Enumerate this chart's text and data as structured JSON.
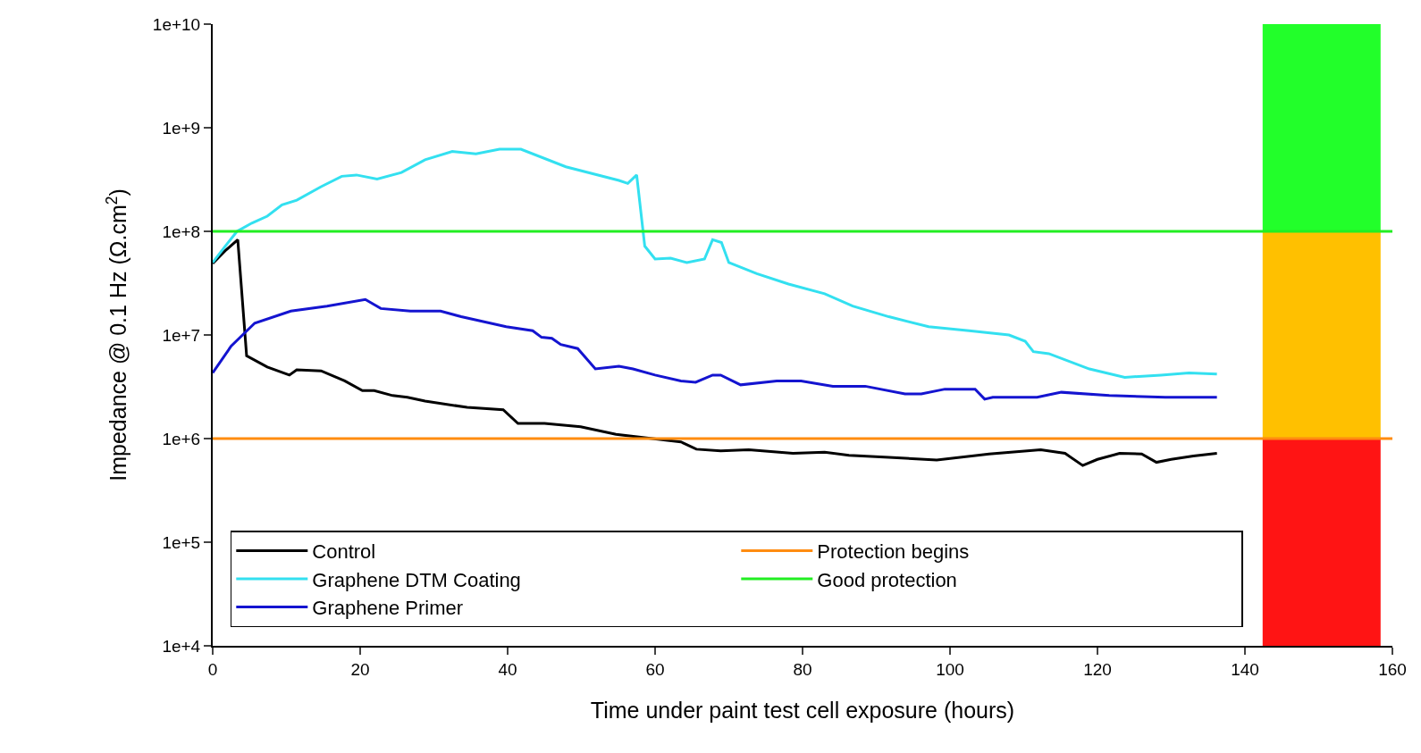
{
  "chart_data": {
    "type": "line",
    "xlabel": "Time under paint test cell exposure (hours)",
    "ylabel": "Impedance @ 0.1 Hz (Ω.cm$^{2}$)",
    "xlim": [
      0,
      160
    ],
    "xticks": [
      0,
      20,
      40,
      60,
      80,
      100,
      120,
      140,
      160
    ],
    "ylim": [
      10000.0,
      10000000000.0
    ],
    "yticks": [
      {
        "value": 10000.0,
        "label": "1e+4"
      },
      {
        "value": 100000.0,
        "label": "1e+5"
      },
      {
        "value": 1000000.0,
        "label": "1e+6"
      },
      {
        "value": 10000000.0,
        "label": "1e+7"
      },
      {
        "value": 100000000.0,
        "label": "1e+8"
      },
      {
        "value": 1000000000.0,
        "label": "1e+9"
      },
      {
        "value": 10000000000.0,
        "label": "1e+10"
      }
    ],
    "log": "y",
    "grid": false,
    "legend": "bottom left",
    "marker": "none",
    "line_style": "solid",
    "series": [
      {
        "name": "Control",
        "color": "#000000",
        "x": [
          0,
          1.7,
          3.4,
          4.6,
          7.4,
          10.4,
          11.4,
          14.7,
          17.9,
          20.3,
          21.9,
          24.4,
          26.4,
          28.8,
          34.5,
          39.4,
          41.4,
          43.4,
          45,
          49.9,
          54.7,
          63.5,
          65.6,
          68.9,
          72.7,
          78.7,
          83,
          86.3,
          91.7,
          98.2,
          105.3,
          112.3,
          115.6,
          118,
          120,
          123,
          126,
          128,
          130,
          133,
          136.2
        ],
        "values": [
          49000000.0,
          65000000.0,
          83000000.0,
          6300000.0,
          4900000.0,
          4100000.0,
          4600000.0,
          4500000.0,
          3600000.0,
          2900000.0,
          2900000.0,
          2600000.0,
          2500000.0,
          2300000.0,
          2000000.0,
          1900000.0,
          1400000.0,
          1400000.0,
          1400000.0,
          1300000.0,
          1100000.0,
          930000.0,
          790000.0,
          760000.0,
          780000.0,
          720000.0,
          740000.0,
          690000.0,
          660000.0,
          620000.0,
          710000.0,
          780000.0,
          720000.0,
          550000.0,
          630000.0,
          720000.0,
          710000.0,
          590000.0,
          630000.0,
          680000.0,
          720000.0
        ]
      },
      {
        "name": "Graphene DTM Coating",
        "color": "#33e0f0",
        "x": [
          0,
          1.7,
          3.3,
          5.3,
          7.4,
          9.4,
          11.4,
          14.7,
          17.5,
          19.5,
          22.3,
          25.6,
          28.8,
          32.5,
          35.7,
          38.9,
          41.8,
          47.9,
          55.1,
          56.3,
          57.5,
          58.6,
          60,
          62.1,
          64.3,
          66.7,
          67.8,
          69,
          70,
          73.8,
          78.1,
          83,
          86.8,
          91.7,
          97.1,
          102.6,
          108,
          110.2,
          111.3,
          113.4,
          118.9,
          123.7,
          128.6,
          132.4,
          136.2
        ],
        "values": [
          50000000.0,
          72000000.0,
          100000000.0,
          120000000.0,
          140000000.0,
          180000000.0,
          200000000.0,
          270000000.0,
          340000000.0,
          350000000.0,
          320000000.0,
          370000000.0,
          490000000.0,
          590000000.0,
          560000000.0,
          620000000.0,
          620000000.0,
          420000000.0,
          310000000.0,
          290000000.0,
          350000000.0,
          72000000.0,
          54000000.0,
          55000000.0,
          50000000.0,
          54000000.0,
          83000000.0,
          78000000.0,
          50000000.0,
          39000000.0,
          31000000.0,
          25000000.0,
          19000000.0,
          15000000.0,
          12000000.0,
          11000000.0,
          10000000.0,
          8700000.0,
          6900000.0,
          6600000.0,
          4700000.0,
          3900000.0,
          4100000.0,
          4300000.0,
          4200000.0
        ]
      },
      {
        "name": "Graphene Primer",
        "color": "#1414d0",
        "x": [
          0,
          2.5,
          5.7,
          10.6,
          15.5,
          20.7,
          22.8,
          26.8,
          30.9,
          33.7,
          39.8,
          43.4,
          44.6,
          46,
          47.2,
          49.5,
          51.9,
          55.1,
          57,
          60,
          63.5,
          65.5,
          67.8,
          68.9,
          71.6,
          76.5,
          79.8,
          84.1,
          88.5,
          93.9,
          96.1,
          99.3,
          103.4,
          104.7,
          105.8,
          111.8,
          115.1,
          121.6,
          129.2,
          136.2
        ],
        "values": [
          4300000.0,
          7800000.0,
          13000000.0,
          17000000.0,
          19000000.0,
          22000000.0,
          18000000.0,
          17000000.0,
          17000000.0,
          15000000.0,
          12000000.0,
          11000000.0,
          9500000.0,
          9300000.0,
          8100000.0,
          7400000.0,
          4700000.0,
          5000000.0,
          4700000.0,
          4100000.0,
          3600000.0,
          3500000.0,
          4100000.0,
          4100000.0,
          3300000.0,
          3600000.0,
          3600000.0,
          3200000.0,
          3200000.0,
          2700000.0,
          2700000.0,
          3000000.0,
          3000000.0,
          2400000.0,
          2500000.0,
          2500000.0,
          2800000.0,
          2600000.0,
          2500000.0,
          2500000.0
        ]
      }
    ],
    "ref_lines": [
      {
        "axis": "y",
        "value": 1000000.0,
        "label": "Protection begins",
        "color": "#ff8c10"
      },
      {
        "axis": "y",
        "value": 100000000.0,
        "label": "Good protection",
        "color": "#22ee22"
      }
    ],
    "bands": [
      {
        "axis": "y",
        "from": 10000.0,
        "to": 1000000.0,
        "color": "#ff1414"
      },
      {
        "axis": "y",
        "from": 1000000.0,
        "to": 100000000.0,
        "color": "#ffc000"
      },
      {
        "axis": "y",
        "from": 100000000.0,
        "to": 10000000000.0,
        "color": "#22ff2a"
      }
    ]
  }
}
